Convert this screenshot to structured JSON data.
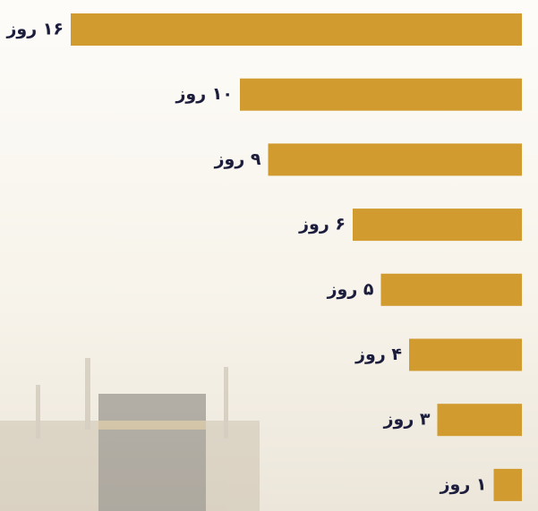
{
  "chart_data": {
    "type": "hbar",
    "values": [
      16,
      10,
      9,
      6,
      5,
      4,
      3,
      1
    ],
    "value_labels": [
      "۱۶ روز",
      "۱۰ روز",
      "۹ روز",
      "۶ روز",
      "۵ روز",
      "۴ روز",
      "۳ روز",
      "۱ روز"
    ],
    "color": "#d19b2f"
  }
}
